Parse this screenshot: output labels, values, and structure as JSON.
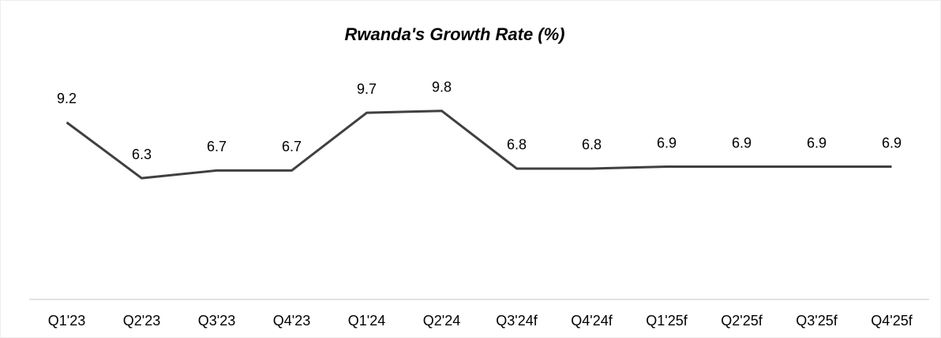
{
  "chart_data": {
    "type": "line",
    "title": "Rwanda's Growth Rate (%)",
    "categories": [
      "Q1'23",
      "Q2'23",
      "Q3'23",
      "Q4'23",
      "Q1'24",
      "Q2'24",
      "Q3'24f",
      "Q4'24f",
      "Q1'25f",
      "Q2'25f",
      "Q3'25f",
      "Q4'25f"
    ],
    "values": [
      9.2,
      6.3,
      6.7,
      6.7,
      9.7,
      9.8,
      6.8,
      6.8,
      6.9,
      6.9,
      6.9,
      6.9
    ],
    "color": "#404040",
    "ylim": [
      0,
      12
    ]
  }
}
